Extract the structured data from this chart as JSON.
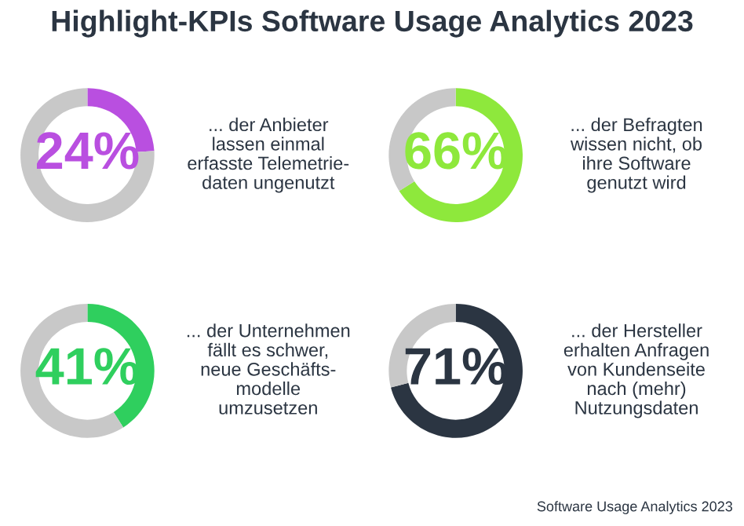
{
  "chart_data": [
    {
      "type": "donut",
      "title": "Highlight-KPIs Software Usage Analytics 2023",
      "categories": [
        null,
        null
      ],
      "values": [
        24,
        76
      ],
      "colors": [
        "#b94fe0",
        "#c8c8c8"
      ],
      "value_labels": [
        "24%",
        null
      ],
      "annotations": [
        "... der Anbieter\nlassen einmal\nerfasste Telemetrie-\ndaten ungenutzt"
      ]
    },
    {
      "type": "donut",
      "categories": [
        null,
        null
      ],
      "values": [
        66,
        34
      ],
      "colors": [
        "#8ee83c",
        "#c8c8c8"
      ],
      "value_labels": [
        "66%",
        null
      ],
      "annotations": [
        "... der Befragten\nwissen nicht, ob\nihre Software\ngenutzt wird"
      ]
    },
    {
      "type": "donut",
      "categories": [
        null,
        null
      ],
      "values": [
        41,
        59
      ],
      "colors": [
        "#2fcf5e",
        "#c8c8c8"
      ],
      "value_labels": [
        "41%",
        null
      ],
      "annotations": [
        "... der Unternehmen\nfällt es schwer,\nneue Geschäfts-\nmodelle\numzusetzen"
      ]
    },
    {
      "type": "donut",
      "categories": [
        null,
        null
      ],
      "values": [
        71,
        29
      ],
      "colors": [
        "#2b3542",
        "#c8c8c8"
      ],
      "value_labels": [
        "71%",
        null
      ],
      "annotations": [
        "... der Hersteller\nerhalten Anfragen\nvon Kundenseite\nnach (mehr)\nNutzungsdaten",
        "Software Usage Analytics 2023"
      ]
    }
  ]
}
